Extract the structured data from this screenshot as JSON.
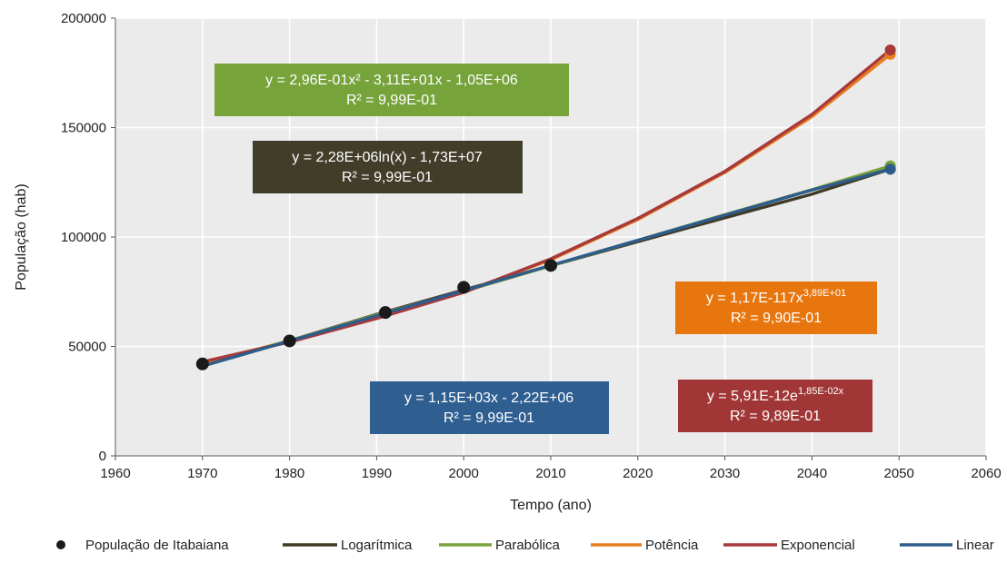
{
  "chart_data": {
    "type": "scatter",
    "title": "",
    "xlabel": "Tempo (ano)",
    "ylabel": "População (hab)",
    "xlim": [
      1960,
      2060
    ],
    "ylim": [
      0,
      200000
    ],
    "x_ticks": [
      1960,
      1970,
      1980,
      1990,
      2000,
      2010,
      2020,
      2030,
      2040,
      2050,
      2060
    ],
    "y_ticks": [
      0,
      50000,
      100000,
      150000,
      200000
    ],
    "y_tick_labels": [
      "0",
      "50000",
      "100000",
      "150000",
      "200000"
    ],
    "grid": true,
    "legend_position": "bottom",
    "observed": {
      "name": "População de Itabaiana",
      "color": "#1a1a1a",
      "x": [
        1970,
        1980,
        1991,
        2000,
        2010
      ],
      "y": [
        42000,
        52500,
        65500,
        77000,
        87000
      ]
    },
    "series": [
      {
        "name": "Logarítmica",
        "color": "#403a27",
        "x": [
          1970,
          1980,
          1990,
          2000,
          2010,
          2020,
          2030,
          2040,
          2049
        ],
        "y": [
          41900,
          52600,
          64700,
          75800,
          86900,
          97900,
          108800,
          119600,
          131000
        ]
      },
      {
        "name": "Parabólica",
        "color": "#7aa33c",
        "x": [
          1970,
          1980,
          1990,
          2000,
          2010,
          2020,
          2030,
          2040,
          2049
        ],
        "y": [
          42000,
          52600,
          64400,
          75200,
          86800,
          98500,
          110200,
          121600,
          132500
        ]
      },
      {
        "name": "Potência",
        "color": "#e87d1e",
        "x": [
          1970,
          1980,
          1990,
          2000,
          2010,
          2020,
          2030,
          2040,
          2049
        ],
        "y": [
          42800,
          52300,
          63500,
          75000,
          89600,
          108000,
          129500,
          155000,
          183500
        ]
      },
      {
        "name": "Exponencial",
        "color": "#a8393b",
        "x": [
          1970,
          1980,
          1990,
          2000,
          2010,
          2020,
          2030,
          2040,
          2049
        ],
        "y": [
          43000,
          52000,
          62800,
          74700,
          90000,
          108500,
          130000,
          156000,
          185500
        ]
      },
      {
        "name": "Linear",
        "color": "#2e5c8a",
        "x": [
          1970,
          1980,
          1990,
          2000,
          2010,
          2020,
          2030,
          2040,
          2049
        ],
        "y": [
          41000,
          52500,
          64000,
          75500,
          87000,
          98500,
          110000,
          121500,
          131000
        ]
      }
    ],
    "annotations": [
      {
        "series": "Parabólica",
        "color": "#77a33b",
        "line1": "y = 2,96E-01x² - 3,11E+01x - 1,05E+06",
        "line2": "R² = 9,99E-01"
      },
      {
        "series": "Logarítmica",
        "color": "#423d29",
        "line1": "y = 2,28E+06ln(x) - 1,73E+07",
        "line2": "R² = 9,99E-01"
      },
      {
        "series": "Potência",
        "color": "#e8760f",
        "line1_base": "y = 1,17E-117x",
        "line1_sup": "3,89E+01",
        "line2": "R² = 9,90E-01"
      },
      {
        "series": "Linear",
        "color": "#2f5e91",
        "line1": "y = 1,15E+03x - 2,22E+06",
        "line2": "R² = 9,99E-01"
      },
      {
        "series": "Exponencial",
        "color": "#a13636",
        "line1_base": "y = 5,91E-12e",
        "line1_sup": "1,85E-02x",
        "line2": "R² = 9,89E-01"
      }
    ]
  }
}
